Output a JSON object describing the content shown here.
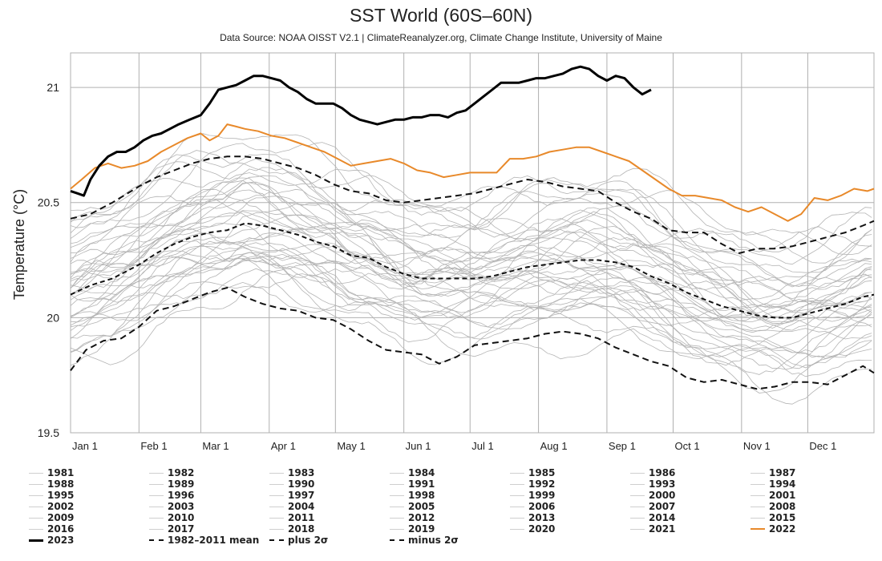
{
  "chart_data": {
    "type": "line",
    "title": "SST World (60S–60N)",
    "subtitle": "Data Source: NOAA OISST V2.1 | ClimateReanalyzer.org, Climate Change Institute, University of Maine",
    "xlabel": "",
    "ylabel": "Temperature (°C)",
    "xlim": [
      1,
      365
    ],
    "ylim": [
      19.5,
      21.15
    ],
    "yticks": [
      19.5,
      20,
      20.5,
      21
    ],
    "ytick_labels": [
      "19.5",
      "20",
      "20.5",
      "21"
    ],
    "xticks": [
      {
        "label": "Jan 1",
        "day": 1
      },
      {
        "label": "Feb 1",
        "day": 32
      },
      {
        "label": "Mar 1",
        "day": 60
      },
      {
        "label": "Apr 1",
        "day": 91
      },
      {
        "label": "May 1",
        "day": 121
      },
      {
        "label": "Jun 1",
        "day": 152
      },
      {
        "label": "Jul 1",
        "day": 182
      },
      {
        "label": "Aug 1",
        "day": 213
      },
      {
        "label": "Sep 1",
        "day": 244
      },
      {
        "label": "Oct 1",
        "day": 274
      },
      {
        "label": "Nov 1",
        "day": 305
      },
      {
        "label": "Dec 1",
        "day": 335
      }
    ],
    "grid": true,
    "legend_position": "bottom",
    "colors": {
      "background_years": "#b4b4b4",
      "year_2023": "#000000",
      "year_2022": "#e8892a",
      "climatology": "#111111",
      "grid": "#b0b0b0"
    },
    "series": [
      {
        "name": "2023",
        "style": "solid-thick-black",
        "x": [
          1,
          4,
          7,
          10,
          14,
          18,
          22,
          26,
          30,
          34,
          38,
          42,
          46,
          50,
          55,
          60,
          64,
          68,
          72,
          76,
          80,
          84,
          88,
          92,
          96,
          100,
          104,
          108,
          112,
          116,
          120,
          124,
          128,
          132,
          136,
          140,
          144,
          148,
          152,
          156,
          160,
          164,
          168,
          172,
          176,
          180,
          184,
          188,
          192,
          196,
          200,
          204,
          208,
          212,
          216,
          220,
          224,
          228,
          232,
          236,
          240,
          244,
          248,
          252,
          256,
          260,
          262,
          264
        ],
        "y": [
          20.55,
          20.54,
          20.53,
          20.6,
          20.66,
          20.7,
          20.72,
          20.72,
          20.74,
          20.77,
          20.79,
          20.8,
          20.82,
          20.84,
          20.86,
          20.88,
          20.93,
          20.99,
          21.0,
          21.01,
          21.03,
          21.05,
          21.05,
          21.04,
          21.03,
          21.0,
          20.98,
          20.95,
          20.93,
          20.93,
          20.93,
          20.91,
          20.88,
          20.86,
          20.85,
          20.84,
          20.85,
          20.86,
          20.86,
          20.87,
          20.87,
          20.88,
          20.88,
          20.87,
          20.89,
          20.9,
          20.93,
          20.96,
          20.99,
          21.02,
          21.02,
          21.02,
          21.03,
          21.04,
          21.04,
          21.05,
          21.06,
          21.08,
          21.09,
          21.08,
          21.05,
          21.03,
          21.05,
          21.04,
          21.0,
          20.97,
          20.98,
          20.99
        ]
      },
      {
        "name": "2022",
        "style": "solid-orange",
        "x": [
          1,
          6,
          12,
          18,
          24,
          30,
          36,
          42,
          48,
          54,
          60,
          64,
          68,
          72,
          76,
          80,
          86,
          92,
          98,
          104,
          110,
          116,
          122,
          128,
          134,
          140,
          146,
          152,
          158,
          164,
          170,
          176,
          182,
          188,
          194,
          200,
          206,
          212,
          218,
          224,
          230,
          236,
          242,
          248,
          254,
          260,
          266,
          272,
          278,
          284,
          290,
          296,
          302,
          308,
          314,
          320,
          326,
          332,
          338,
          344,
          350,
          356,
          362,
          365
        ],
        "y": [
          20.56,
          20.6,
          20.65,
          20.67,
          20.65,
          20.66,
          20.68,
          20.72,
          20.75,
          20.78,
          20.8,
          20.77,
          20.79,
          20.84,
          20.83,
          20.82,
          20.81,
          20.79,
          20.78,
          20.76,
          20.74,
          20.72,
          20.69,
          20.66,
          20.67,
          20.68,
          20.69,
          20.67,
          20.64,
          20.63,
          20.61,
          20.62,
          20.63,
          20.63,
          20.63,
          20.69,
          20.69,
          20.7,
          20.72,
          20.73,
          20.74,
          20.74,
          20.72,
          20.7,
          20.68,
          20.64,
          20.6,
          20.56,
          20.53,
          20.53,
          20.52,
          20.51,
          20.48,
          20.46,
          20.48,
          20.45,
          20.42,
          20.45,
          20.52,
          20.51,
          20.53,
          20.56,
          20.55,
          20.56
        ]
      },
      {
        "name": "1982-2011 mean",
        "style": "dashed-black",
        "x": [
          1,
          10,
          20,
          32,
          40,
          48,
          56,
          64,
          72,
          80,
          88,
          96,
          104,
          112,
          120,
          128,
          136,
          144,
          152,
          160,
          168,
          176,
          184,
          192,
          200,
          208,
          216,
          224,
          232,
          240,
          248,
          256,
          264,
          272,
          280,
          288,
          296,
          304,
          312,
          320,
          328,
          336,
          344,
          352,
          360,
          365
        ],
        "y": [
          20.1,
          20.14,
          20.17,
          20.23,
          20.28,
          20.32,
          20.35,
          20.37,
          20.38,
          20.41,
          20.4,
          20.38,
          20.36,
          20.33,
          20.31,
          20.27,
          20.26,
          20.22,
          20.19,
          20.17,
          20.17,
          20.17,
          20.17,
          20.18,
          20.2,
          20.22,
          20.23,
          20.24,
          20.25,
          20.25,
          20.24,
          20.22,
          20.18,
          20.15,
          20.11,
          20.08,
          20.05,
          20.03,
          20.01,
          20.0,
          20.0,
          20.02,
          20.04,
          20.06,
          20.09,
          20.1
        ]
      },
      {
        "name": "plus 2σ",
        "style": "dashdot-black",
        "x": [
          1,
          10,
          20,
          32,
          40,
          48,
          56,
          64,
          72,
          80,
          88,
          96,
          104,
          112,
          120,
          128,
          136,
          144,
          152,
          160,
          168,
          176,
          184,
          192,
          200,
          208,
          216,
          224,
          232,
          240,
          248,
          256,
          264,
          272,
          280,
          288,
          296,
          304,
          312,
          320,
          328,
          336,
          344,
          352,
          360,
          365
        ],
        "y": [
          20.43,
          20.45,
          20.5,
          20.57,
          20.61,
          20.64,
          20.67,
          20.69,
          20.7,
          20.7,
          20.69,
          20.67,
          20.65,
          20.62,
          20.58,
          20.55,
          20.54,
          20.51,
          20.5,
          20.51,
          20.52,
          20.53,
          20.54,
          20.56,
          20.58,
          20.6,
          20.59,
          20.57,
          20.56,
          20.55,
          20.5,
          20.46,
          20.43,
          20.38,
          20.37,
          20.37,
          20.32,
          20.28,
          20.3,
          20.3,
          20.31,
          20.33,
          20.35,
          20.37,
          20.4,
          20.42
        ]
      },
      {
        "name": "minus 2σ",
        "style": "dashdot-black",
        "x": [
          1,
          8,
          16,
          24,
          32,
          40,
          48,
          56,
          64,
          72,
          80,
          88,
          96,
          104,
          112,
          120,
          128,
          136,
          144,
          152,
          160,
          168,
          176,
          184,
          192,
          200,
          208,
          216,
          224,
          232,
          240,
          248,
          256,
          264,
          272,
          280,
          288,
          296,
          304,
          312,
          320,
          328,
          336,
          344,
          352,
          360,
          365
        ],
        "y": [
          19.77,
          19.86,
          19.9,
          19.91,
          19.96,
          20.03,
          20.05,
          20.08,
          20.11,
          20.13,
          20.09,
          20.06,
          20.04,
          20.03,
          20.0,
          19.99,
          19.95,
          19.9,
          19.86,
          19.85,
          19.84,
          19.8,
          19.83,
          19.88,
          19.89,
          19.9,
          19.91,
          19.93,
          19.94,
          19.93,
          19.91,
          19.87,
          19.84,
          19.81,
          19.79,
          19.74,
          19.72,
          19.73,
          19.71,
          19.69,
          19.7,
          19.72,
          19.72,
          19.71,
          19.75,
          19.79,
          19.76
        ]
      }
    ],
    "background_years": {
      "style": "solid-thin-gray",
      "names": [
        "1981",
        "1982",
        "1983",
        "1984",
        "1985",
        "1986",
        "1987",
        "1988",
        "1989",
        "1990",
        "1991",
        "1992",
        "1993",
        "1994",
        "1995",
        "1996",
        "1997",
        "1998",
        "1999",
        "2000",
        "2001",
        "2002",
        "2003",
        "2004",
        "2005",
        "2006",
        "2007",
        "2008",
        "2009",
        "2010",
        "2011",
        "2012",
        "2013",
        "2014",
        "2015",
        "2016",
        "2017",
        "2018",
        "2019",
        "2020",
        "2021"
      ],
      "note": "41 individual-year traces spread roughly within the +/-2 sigma envelope around the climatological mean, with more recent years toward the upper edge",
      "approx_annual_offset_from_mean": [
        -0.27,
        -0.2,
        -0.06,
        -0.2,
        -0.24,
        -0.17,
        -0.04,
        -0.05,
        -0.2,
        -0.12,
        -0.1,
        -0.17,
        -0.16,
        -0.13,
        -0.09,
        -0.12,
        0.05,
        0.08,
        -0.04,
        -0.05,
        0.02,
        0.08,
        0.09,
        0.05,
        0.08,
        0.06,
        0.02,
        0.02,
        0.08,
        0.16,
        0.08,
        0.1,
        0.11,
        0.15,
        0.26,
        0.33,
        0.3,
        0.23,
        0.3,
        0.29,
        0.26
      ]
    },
    "legend": [
      {
        "label": "1981",
        "style": "gray"
      },
      {
        "label": "1982",
        "style": "gray"
      },
      {
        "label": "1983",
        "style": "gray"
      },
      {
        "label": "1984",
        "style": "gray"
      },
      {
        "label": "1985",
        "style": "gray"
      },
      {
        "label": "1986",
        "style": "gray"
      },
      {
        "label": "1987",
        "style": "gray"
      },
      {
        "label": "1988",
        "style": "gray"
      },
      {
        "label": "1989",
        "style": "gray"
      },
      {
        "label": "1990",
        "style": "gray"
      },
      {
        "label": "1991",
        "style": "gray"
      },
      {
        "label": "1992",
        "style": "gray"
      },
      {
        "label": "1993",
        "style": "gray"
      },
      {
        "label": "1994",
        "style": "gray"
      },
      {
        "label": "1995",
        "style": "gray"
      },
      {
        "label": "1996",
        "style": "gray"
      },
      {
        "label": "1997",
        "style": "gray"
      },
      {
        "label": "1998",
        "style": "gray"
      },
      {
        "label": "1999",
        "style": "gray"
      },
      {
        "label": "2000",
        "style": "gray"
      },
      {
        "label": "2001",
        "style": "gray"
      },
      {
        "label": "2002",
        "style": "gray"
      },
      {
        "label": "2003",
        "style": "gray"
      },
      {
        "label": "2004",
        "style": "gray"
      },
      {
        "label": "2005",
        "style": "gray"
      },
      {
        "label": "2006",
        "style": "gray"
      },
      {
        "label": "2007",
        "style": "gray"
      },
      {
        "label": "2008",
        "style": "gray"
      },
      {
        "label": "2009",
        "style": "gray"
      },
      {
        "label": "2010",
        "style": "gray"
      },
      {
        "label": "2011",
        "style": "gray"
      },
      {
        "label": "2012",
        "style": "gray"
      },
      {
        "label": "2013",
        "style": "gray"
      },
      {
        "label": "2014",
        "style": "gray"
      },
      {
        "label": "2015",
        "style": "gray"
      },
      {
        "label": "2016",
        "style": "gray"
      },
      {
        "label": "2017",
        "style": "gray"
      },
      {
        "label": "2018",
        "style": "gray"
      },
      {
        "label": "2019",
        "style": "gray"
      },
      {
        "label": "2020",
        "style": "gray"
      },
      {
        "label": "2021",
        "style": "gray"
      },
      {
        "label": "2022",
        "style": "orange"
      },
      {
        "label": "2023",
        "style": "black"
      },
      {
        "label": "1982–2011 mean",
        "style": "dash"
      },
      {
        "label": "plus 2σ",
        "style": "dashdot"
      },
      {
        "label": "minus 2σ",
        "style": "dashdot"
      }
    ]
  }
}
